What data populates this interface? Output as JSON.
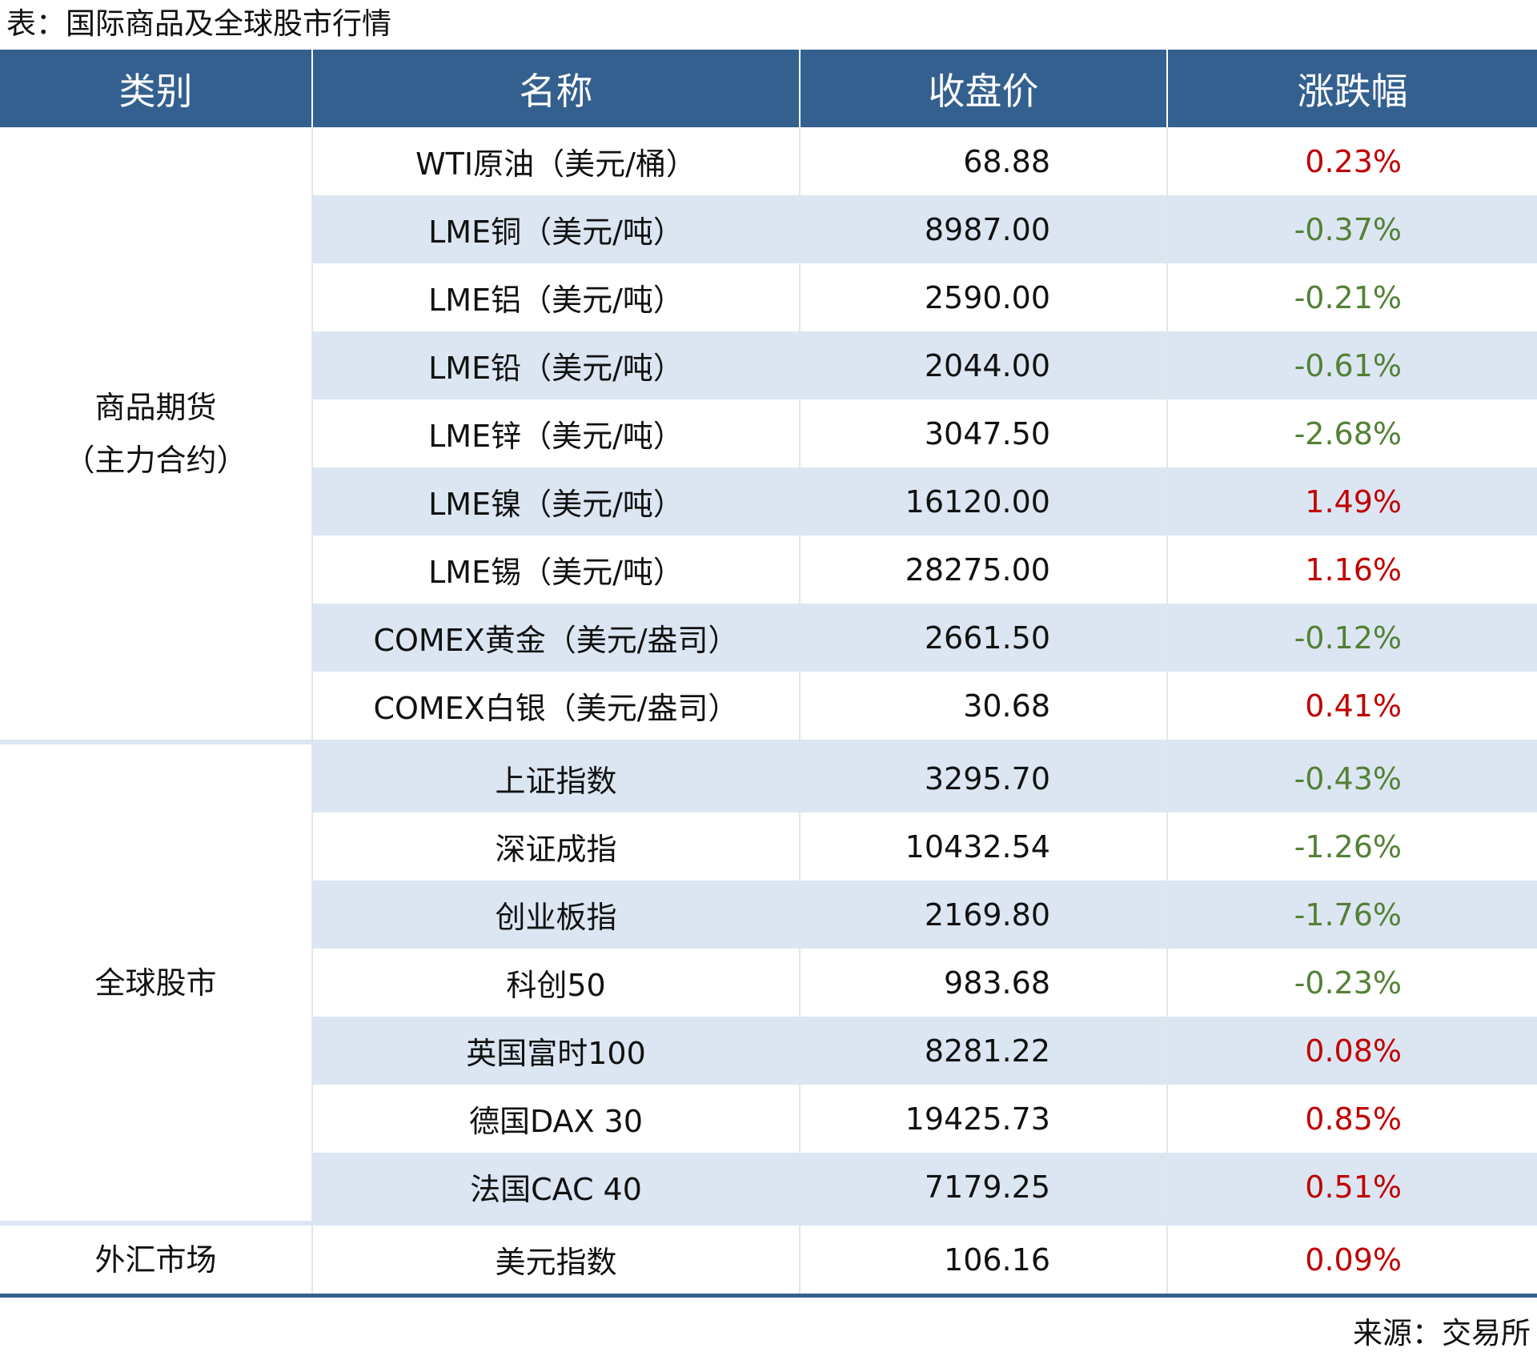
{
  "title": "表：国际商品及全球股市行情",
  "table": {
    "headers": [
      "类别",
      "名称",
      "收盘价",
      "涨跌幅"
    ],
    "groups": [
      {
        "category": [
          "商品期货",
          "（主力合约）"
        ],
        "rows": [
          [
            "WTI原油（美元/桶）",
            "68.88",
            "0.23%"
          ],
          [
            "LME铜（美元/吨）",
            "8987.00",
            "-0.37%"
          ],
          [
            "LME铝（美元/吨）",
            "2590.00",
            "-0.21%"
          ],
          [
            "LME铅（美元/吨）",
            "2044.00",
            "-0.61%"
          ],
          [
            "LME锌（美元/吨）",
            "3047.50",
            "-2.68%"
          ],
          [
            "LME镍（美元/吨）",
            "16120.00",
            "1.49%"
          ],
          [
            "LME锡（美元/吨）",
            "28275.00",
            "1.16%"
          ],
          [
            "COMEX黄金（美元/盎司）",
            "2661.50",
            "-0.12%"
          ],
          [
            "COMEX白银（美元/盎司）",
            "30.68",
            "0.41%"
          ]
        ]
      },
      {
        "category": [
          "全球股市"
        ],
        "rows": [
          [
            "上证指数",
            "3295.70",
            "-0.43%"
          ],
          [
            "深证成指",
            "10432.54",
            "-1.26%"
          ],
          [
            "创业板指",
            "2169.80",
            "-1.76%"
          ],
          [
            "科创50",
            "983.68",
            "-0.23%"
          ],
          [
            "英国富时100",
            "8281.22",
            "0.08%"
          ],
          [
            "德国DAX 30",
            "19425.73",
            "0.85%"
          ],
          [
            "法国CAC 40",
            "7179.25",
            "0.51%"
          ]
        ]
      },
      {
        "category": [
          "外汇市场"
        ],
        "rows": [
          [
            "美元指数",
            "106.16",
            "0.09%"
          ]
        ]
      }
    ]
  },
  "source": "来源：交易所"
}
